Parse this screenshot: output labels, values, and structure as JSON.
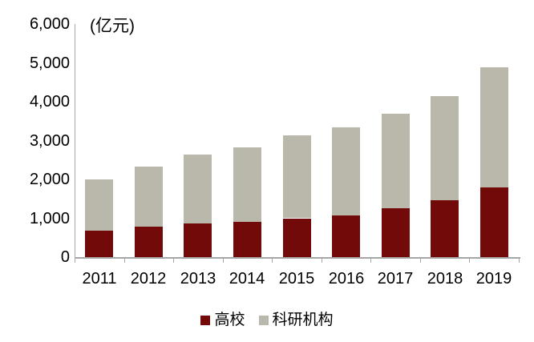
{
  "chart_data": {
    "type": "bar",
    "stacked": true,
    "title": "",
    "unit_label": "(亿元)",
    "categories": [
      "2011",
      "2012",
      "2013",
      "2014",
      "2015",
      "2016",
      "2017",
      "2018",
      "2019"
    ],
    "series": [
      {
        "name": "高校",
        "color": "#730A0A",
        "values": [
          689,
          781,
          857,
          898,
          999,
          1072,
          1266,
          1458,
          1797
        ]
      },
      {
        "name": "科研机构",
        "color": "#BAB8AA",
        "values": [
          1307,
          1549,
          1781,
          1926,
          2137,
          2260,
          2436,
          2692,
          3081
        ]
      }
    ],
    "stack_totals": [
      1996,
      2330,
      2638,
      2824,
      3136,
      3332,
      3702,
      4150,
      4878
    ],
    "y_axis": {
      "ticks": [
        "0",
        "1,000",
        "2,000",
        "3,000",
        "4,000",
        "5,000",
        "6,000"
      ],
      "tick_values": [
        0,
        1000,
        2000,
        3000,
        4000,
        5000,
        6000
      ],
      "ylim": [
        0,
        6000
      ]
    },
    "xlabel": "",
    "ylabel": "",
    "grid": false,
    "legend_position": "bottom",
    "legend_entries": [
      "高校",
      "科研机构"
    ],
    "colors": {
      "axis": "#A6A6A6",
      "text": "#000000",
      "background": "#FFFFFF"
    }
  }
}
